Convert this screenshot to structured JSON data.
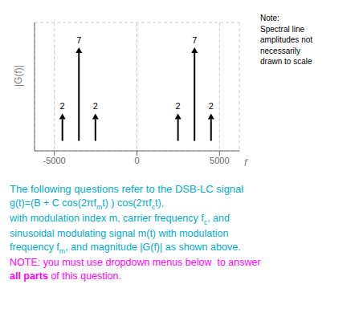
{
  "chart_data": {
    "type": "bar",
    "marker": "arrow",
    "color": "#000000",
    "x": [
      -4500,
      -3500,
      -2500,
      2500,
      3500,
      4500
    ],
    "values": [
      2.2,
      7.5,
      2.2,
      2.2,
      7.5,
      2.2
    ],
    "value_labels": [
      "2",
      "7",
      "2",
      "2",
      "7",
      "2"
    ],
    "data_labels": true,
    "xlabel": "f",
    "ylabel": "|G(f)|",
    "xlim": [
      -6200,
      6200
    ],
    "ylim": [
      -0.8,
      9.5
    ],
    "xticks": [
      -5000,
      0,
      5000
    ],
    "yticks": [
      2.3,
      4.9,
      7.5
    ],
    "tick_labels": "x",
    "grid": true,
    "annotations": [
      {
        "color": "#000000",
        "parts": [
          {
            "text": "Note:\nSpectral line\namplitudes not\nnecessarily\ndrawn to scale"
          }
        ]
      },
      {
        "color": "#00aacc",
        "parts": [
          {
            "text": "The following questions refer to the DSB-LC signal"
          }
        ]
      },
      {
        "color": "#00aacc",
        "parts": [
          {
            "text": "g(t)=(B + C cos(2πf"
          },
          {
            "text": "m",
            "sub": true
          },
          {
            "text": "t) ) cos(2πf"
          },
          {
            "text": "c",
            "sub": true
          },
          {
            "text": "t),"
          }
        ]
      },
      {
        "color": "#00aacc",
        "parts": [
          {
            "text": "with modulation index m, carrier frequency f"
          },
          {
            "text": "c",
            "sub": true
          },
          {
            "text": ", and"
          }
        ]
      },
      {
        "color": "#00aacc",
        "parts": [
          {
            "text": "sinusoidal modulating signal m(t) with modulation"
          }
        ]
      },
      {
        "color": "#00aacc",
        "parts": [
          {
            "text": "frequency f"
          },
          {
            "text": "m",
            "sub": true
          },
          {
            "text": ", and magnitude |G(f)| as shown above."
          }
        ]
      },
      {
        "color": "#ff00ff",
        "parts": [
          {
            "text": "NOTE: you must use dropdown menus below  to answer"
          }
        ]
      },
      {
        "color": "#ff00ff",
        "parts": [
          {
            "text": "all parts",
            "bold": true
          },
          {
            "text": " of this question."
          }
        ]
      }
    ]
  }
}
